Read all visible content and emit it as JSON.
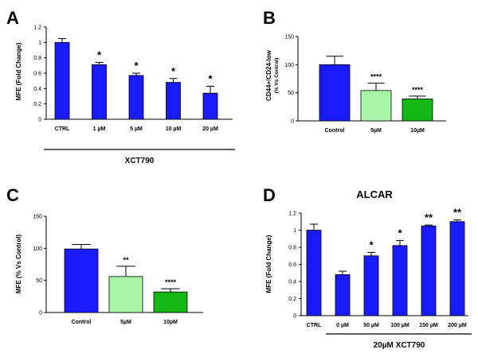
{
  "chart_data": [
    {
      "panel": "A",
      "type": "bar",
      "categories": [
        "CTRL",
        "1 µM",
        "5 µM",
        "10 µM",
        "20 µM"
      ],
      "values": [
        1.0,
        0.71,
        0.57,
        0.48,
        0.34
      ],
      "errors": [
        0.05,
        0.03,
        0.03,
        0.05,
        0.09
      ],
      "significance": [
        "",
        "*",
        "*",
        "*",
        "*"
      ],
      "ylabel": "MFE (Fold Change)",
      "group_label": "XCT790",
      "ylim": [
        0,
        1.2
      ],
      "yticks": [
        "0",
        "0.2",
        "0.4",
        "0.6",
        "0.8",
        "1",
        "1.2"
      ],
      "bar_colors": [
        "#1a1aff",
        "#1a1aff",
        "#1a1aff",
        "#1a1aff",
        "#1a1aff"
      ],
      "grid": false
    },
    {
      "panel": "B",
      "type": "bar",
      "categories": [
        "Control",
        "5µM",
        "10µM"
      ],
      "values": [
        100,
        54,
        39
      ],
      "errors": [
        15,
        13,
        5
      ],
      "significance": [
        "",
        "****",
        "****"
      ],
      "ylabel": "CD44+/CD24-low",
      "ylabel2": "(% Vs Control)",
      "ylim": [
        0,
        150
      ],
      "yticks": [
        "0",
        "50",
        "100",
        "150"
      ],
      "bar_colors": [
        "#1a1aff",
        "#a8f5a8",
        "#14b814"
      ],
      "grid": false
    },
    {
      "panel": "C",
      "type": "bar",
      "categories": [
        "Control",
        "5µM",
        "10µM"
      ],
      "values": [
        99,
        56,
        32
      ],
      "errors": [
        7,
        16,
        5
      ],
      "significance": [
        "",
        "**",
        "****"
      ],
      "ylabel": "MFE (% Vs Control)",
      "ylim": [
        0,
        150
      ],
      "yticks": [
        "0",
        "50",
        "100",
        "150"
      ],
      "bar_colors": [
        "#1a1aff",
        "#a8f5a8",
        "#14b814"
      ],
      "grid": false
    },
    {
      "panel": "D",
      "type": "bar",
      "title": "ALCAR",
      "categories": [
        "CTRL",
        "0 µM",
        "50 µM",
        "100 µM",
        "150 µM",
        "200 µM"
      ],
      "values": [
        1.0,
        0.48,
        0.7,
        0.82,
        1.05,
        1.1
      ],
      "errors": [
        0.07,
        0.04,
        0.04,
        0.06,
        0.01,
        0.02
      ],
      "significance": [
        "",
        "",
        "*",
        "*",
        "**",
        "**"
      ],
      "ylabel": "MFE (Fold Change)",
      "group_label": "20µM XCT790",
      "ylim": [
        0,
        1.2
      ],
      "yticks": [
        "0",
        "0.2",
        "0.4",
        "0.6",
        "0.8",
        "1",
        "1.2"
      ],
      "bar_colors": [
        "#1a1aff",
        "#1a1aff",
        "#1a1aff",
        "#1a1aff",
        "#1a1aff",
        "#1a1aff"
      ],
      "grid": false
    }
  ]
}
